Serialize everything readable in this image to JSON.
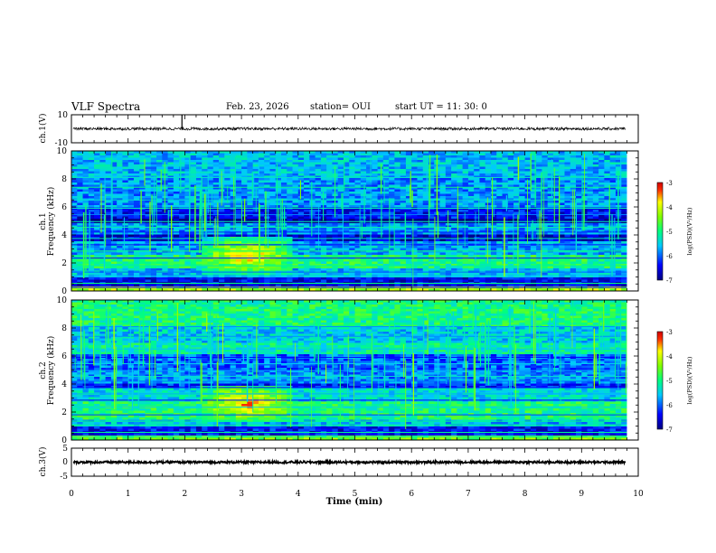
{
  "header": {
    "title": "VLF Spectra",
    "date": "Feb. 23, 2026",
    "station": "station= OUI",
    "start_time": "start  UT =   11: 30: 0"
  },
  "chart_data": [
    {
      "type": "line",
      "id": "ch1-waveform",
      "ylabel": "ch.1(V)",
      "ylim": [
        -10,
        10
      ],
      "yticks": [
        "10",
        "-10"
      ],
      "x_range_min": [
        0,
        9.8
      ],
      "description_values": {
        "baseline": 0,
        "amplitude_approx": 1,
        "spike_at_min": 1.95
      }
    },
    {
      "type": "heatmap",
      "id": "ch1-spectrogram",
      "ylabel": "ch.1",
      "ylabel2": "Frequency  (kHz)",
      "ylim": [
        0,
        10
      ],
      "yticks": [
        "0",
        "2",
        "4",
        "6",
        "8",
        "10"
      ],
      "colorbar": {
        "label": "log(PSD)(V²/Hz)",
        "ticks": [
          "-3",
          "-4",
          "-5",
          "-6",
          "-7"
        ],
        "range": [
          -7,
          -3
        ]
      },
      "bands_khz": [
        {
          "from": 0.0,
          "to": 0.4,
          "level": -4.2
        },
        {
          "from": 0.4,
          "to": 0.9,
          "level": -6.5
        },
        {
          "from": 0.9,
          "to": 1.6,
          "level": -5.6
        },
        {
          "from": 1.6,
          "to": 2.6,
          "level": -5.0
        },
        {
          "from": 2.6,
          "to": 3.6,
          "level": -5.7
        },
        {
          "from": 3.6,
          "to": 4.0,
          "level": -6.6
        },
        {
          "from": 4.0,
          "to": 4.8,
          "level": -5.8
        },
        {
          "from": 4.8,
          "to": 5.2,
          "level": -6.9
        },
        {
          "from": 5.2,
          "to": 6.0,
          "level": -6.4
        },
        {
          "from": 6.0,
          "to": 8.0,
          "level": -5.8
        },
        {
          "from": 8.0,
          "to": 10.0,
          "level": -5.6
        }
      ],
      "emission_event": {
        "t_from_min": 2.3,
        "t_to_min": 3.9,
        "f_from_khz": 1.2,
        "f_to_khz": 3.8,
        "peak_level": -3.6
      }
    },
    {
      "type": "heatmap",
      "id": "ch2-spectrogram",
      "ylabel": "ch.2",
      "ylabel2": "Frequency  (kHz)",
      "ylim": [
        0,
        10
      ],
      "yticks": [
        "0",
        "2",
        "4",
        "6",
        "8",
        "10"
      ],
      "colorbar": {
        "label": "log(PSD)(V²/Hz)",
        "ticks": [
          "-3",
          "-4",
          "-5",
          "-6",
          "-7"
        ],
        "range": [
          -7,
          -3
        ]
      },
      "bands_khz": [
        {
          "from": 0.0,
          "to": 0.4,
          "level": -4.5
        },
        {
          "from": 0.4,
          "to": 0.9,
          "level": -6.4
        },
        {
          "from": 0.9,
          "to": 1.5,
          "level": -5.6
        },
        {
          "from": 1.5,
          "to": 2.8,
          "level": -5.0
        },
        {
          "from": 2.8,
          "to": 3.7,
          "level": -5.4
        },
        {
          "from": 3.7,
          "to": 4.1,
          "level": -6.3
        },
        {
          "from": 4.1,
          "to": 5.0,
          "level": -5.8
        },
        {
          "from": 5.0,
          "to": 6.2,
          "level": -6.0
        },
        {
          "from": 6.2,
          "to": 7.0,
          "level": -5.2
        },
        {
          "from": 7.0,
          "to": 8.0,
          "level": -5.5
        },
        {
          "from": 8.0,
          "to": 10.0,
          "level": -5.0
        }
      ],
      "emission_event": {
        "t_from_min": 2.3,
        "t_to_min": 3.9,
        "f_from_khz": 1.3,
        "f_to_khz": 3.9,
        "peak_level": -3.5
      }
    },
    {
      "type": "line",
      "id": "ch3-waveform",
      "ylabel": "ch.3(V)",
      "ylim": [
        -5,
        5
      ],
      "yticks": [
        "5",
        "0",
        "-5"
      ],
      "description_values": {
        "baseline": 0,
        "amplitude_approx": 0.4
      }
    }
  ],
  "x_axis": {
    "xlabel": "Time  (min)",
    "xlim": [
      0,
      10
    ],
    "ticks": [
      "0",
      "1",
      "2",
      "3",
      "4",
      "5",
      "6",
      "7",
      "8",
      "9",
      "10"
    ],
    "data_end_min": 9.8
  }
}
